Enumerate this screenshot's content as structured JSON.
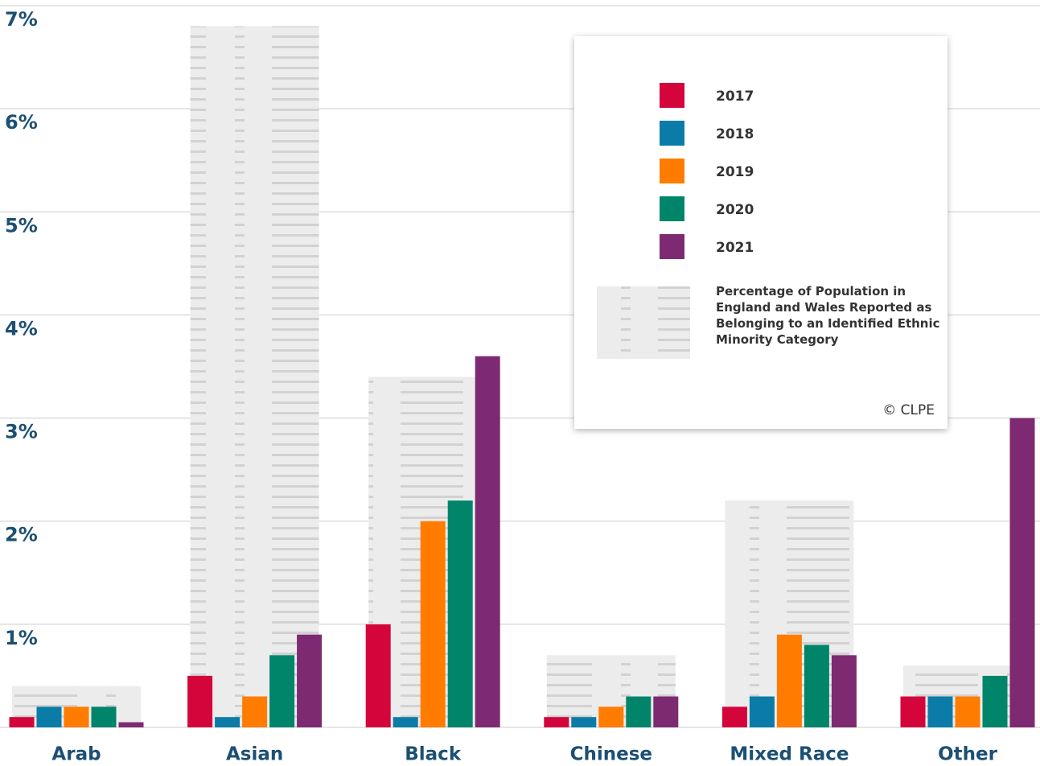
{
  "chart_data": {
    "type": "bar",
    "categories": [
      "Arab",
      "Asian",
      "Black",
      "Chinese",
      "Mixed Race",
      "Other"
    ],
    "background_series": {
      "name": "Percentage of Population in England and Wales Reported as Belonging to an Identified Ethnic Minority Category",
      "color": "#e6e6e6",
      "values": [
        0.4,
        6.8,
        3.4,
        0.7,
        2.2,
        0.6
      ]
    },
    "series": [
      {
        "name": "2017",
        "color": "#d4053a",
        "values": [
          0.1,
          0.5,
          1.0,
          0.1,
          0.2,
          0.3
        ]
      },
      {
        "name": "2018",
        "color": "#0b7ca8",
        "values": [
          0.2,
          0.1,
          0.1,
          0.1,
          0.3,
          0.3
        ]
      },
      {
        "name": "2019",
        "color": "#ff7c00",
        "values": [
          0.2,
          0.3,
          2.0,
          0.2,
          0.9,
          0.3
        ]
      },
      {
        "name": "2020",
        "color": "#00856a",
        "values": [
          0.2,
          0.7,
          2.2,
          0.3,
          0.8,
          0.5
        ]
      },
      {
        "name": "2021",
        "color": "#7d2a73",
        "values": [
          0.05,
          0.9,
          3.6,
          0.3,
          0.7,
          3.0
        ]
      }
    ],
    "ylim": [
      0,
      7
    ],
    "yticks": [
      {
        "value": 1,
        "label": "1%"
      },
      {
        "value": 2,
        "label": "2%"
      },
      {
        "value": 3,
        "label": "3%"
      },
      {
        "value": 4,
        "label": "4%"
      },
      {
        "value": 5,
        "label": "5%"
      },
      {
        "value": 6,
        "label": "6%"
      },
      {
        "value": 7,
        "label": "7%"
      }
    ],
    "grid": true,
    "credit": "© CLPE"
  }
}
